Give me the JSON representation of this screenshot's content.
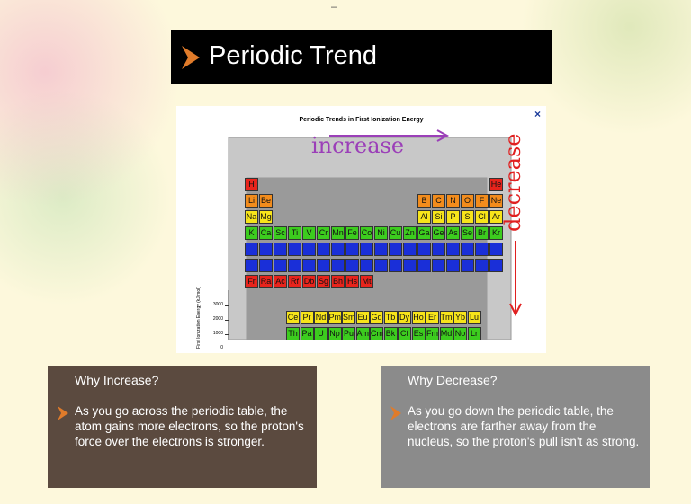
{
  "slide": {
    "minimize": "–",
    "title": "Periodic Trend",
    "figure": {
      "title": "Periodic Trends in First Ionization Energy",
      "close": "×",
      "annotation_across": "increase",
      "annotation_down": "decrease",
      "y_axis_label": "First Ionization Energy (kJ/mol)",
      "yticks": [
        3000,
        2000,
        1000,
        0
      ],
      "rows": [
        {
          "color": "#e8241c",
          "elements": [
            "H",
            "He"
          ]
        },
        {
          "color": "#f28c1c",
          "elements": [
            "Li",
            "Be",
            "B",
            "C",
            "N",
            "O",
            "F",
            "Ne"
          ]
        },
        {
          "color": "#f7e41a",
          "elements": [
            "Na",
            "Mg",
            "Al",
            "Si",
            "P",
            "S",
            "Cl",
            "Ar"
          ]
        },
        {
          "color": "#3ccc1e",
          "elements": [
            "K",
            "Ca",
            "Sc",
            "Ti",
            "V",
            "Cr",
            "Mn",
            "Fe",
            "Co",
            "Ni",
            "Cu",
            "Zn",
            "Ga",
            "Ge",
            "As",
            "Se",
            "Br",
            "Kr"
          ]
        },
        {
          "color": "#1a2fd8",
          "elements": []
        },
        {
          "color": "#1a2fd8",
          "elements": []
        },
        {
          "color": "#e8241c",
          "elements": [
            "Fr",
            "Ra",
            "Ac",
            "Rf",
            "Db",
            "Sg",
            "Bh",
            "Hs",
            "Mt"
          ]
        }
      ],
      "f_rows": [
        {
          "color": "#f7e41a",
          "elements": [
            "Ce",
            "Pr",
            "Nd",
            "Pm",
            "Sm",
            "Eu",
            "Gd",
            "Tb",
            "Dy",
            "Ho",
            "Er",
            "Tm",
            "Yb",
            "Lu"
          ]
        },
        {
          "color": "#3ccc1e",
          "elements": [
            "Th",
            "Pa",
            "U",
            "Np",
            "Pu",
            "Am",
            "Cm",
            "Bk",
            "Cf",
            "Es",
            "Fm",
            "Md",
            "No",
            "Lr"
          ]
        }
      ]
    },
    "boxes": [
      {
        "heading": "Why Increase?",
        "text": "As you go across the periodic table, the atom gains more electrons, so the proton's force over the electrons is stronger."
      },
      {
        "heading": "Why Decrease?",
        "text": "As you go down the periodic table, the electrons are farther away from the nucleus, so the proton's pull isn't as strong."
      }
    ]
  }
}
